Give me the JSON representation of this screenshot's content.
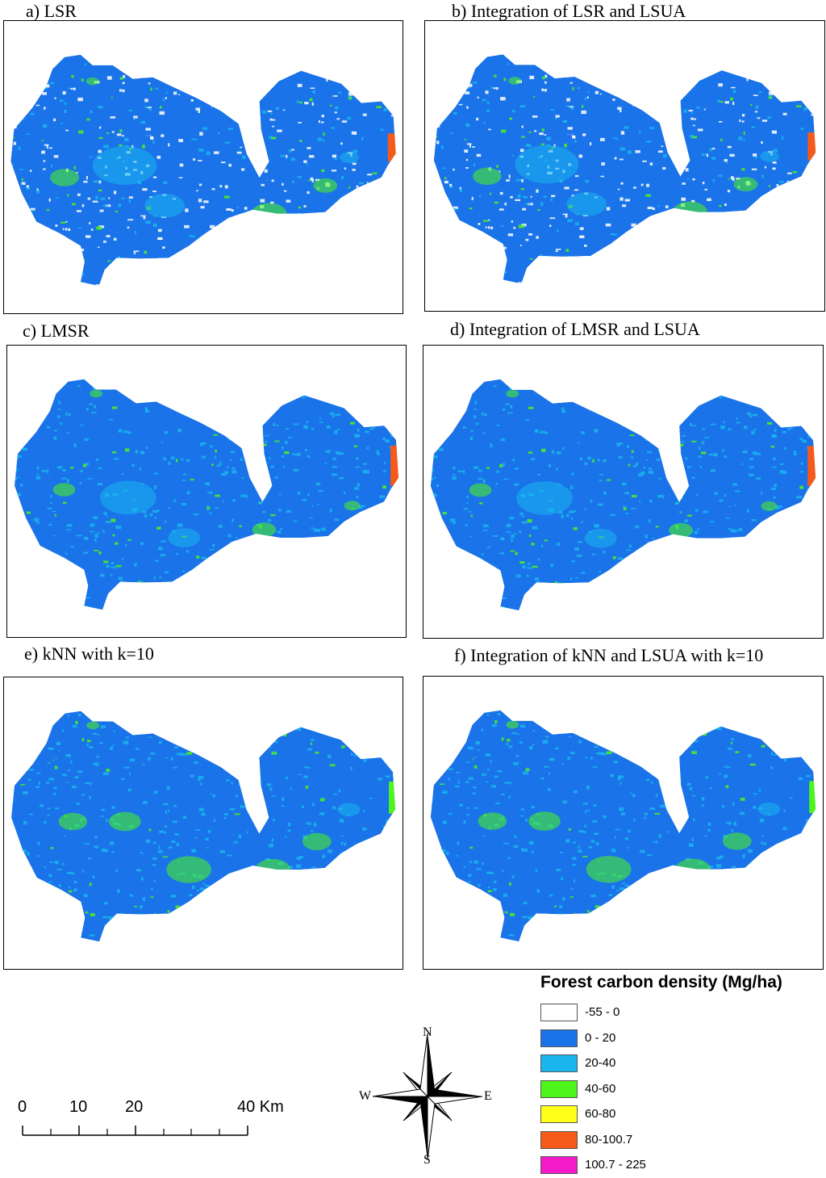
{
  "panels": [
    {
      "title": "a) LSR"
    },
    {
      "title": "b) Integration of LSR and LSUA"
    },
    {
      "title": "c) LMSR"
    },
    {
      "title": "d) Integration of LMSR and LSUA"
    },
    {
      "title": "e) kNN with k=10"
    },
    {
      "title": "f) Integration of kNN and LSUA with k=10"
    }
  ],
  "legend": {
    "title": "Forest carbon density (Mg/ha)",
    "items": [
      {
        "label": "-55 - 0",
        "color": "#ffffff"
      },
      {
        "label": "0 - 20",
        "color": "#1a73e8"
      },
      {
        "label": "20-40",
        "color": "#1ab4ee"
      },
      {
        "label": "40-60",
        "color": "#4df51a"
      },
      {
        "label": "60-80",
        "color": "#ffff1a"
      },
      {
        "label": "80-100.7",
        "color": "#f55a1a"
      },
      {
        "label": "100.7 - 225",
        "color": "#f51ac8"
      }
    ]
  },
  "scale_bar": {
    "labels": [
      "0",
      "10",
      "20",
      "40 Km"
    ]
  },
  "north_arrow": {
    "n": "N",
    "s": "S",
    "e": "E",
    "w": "W"
  }
}
